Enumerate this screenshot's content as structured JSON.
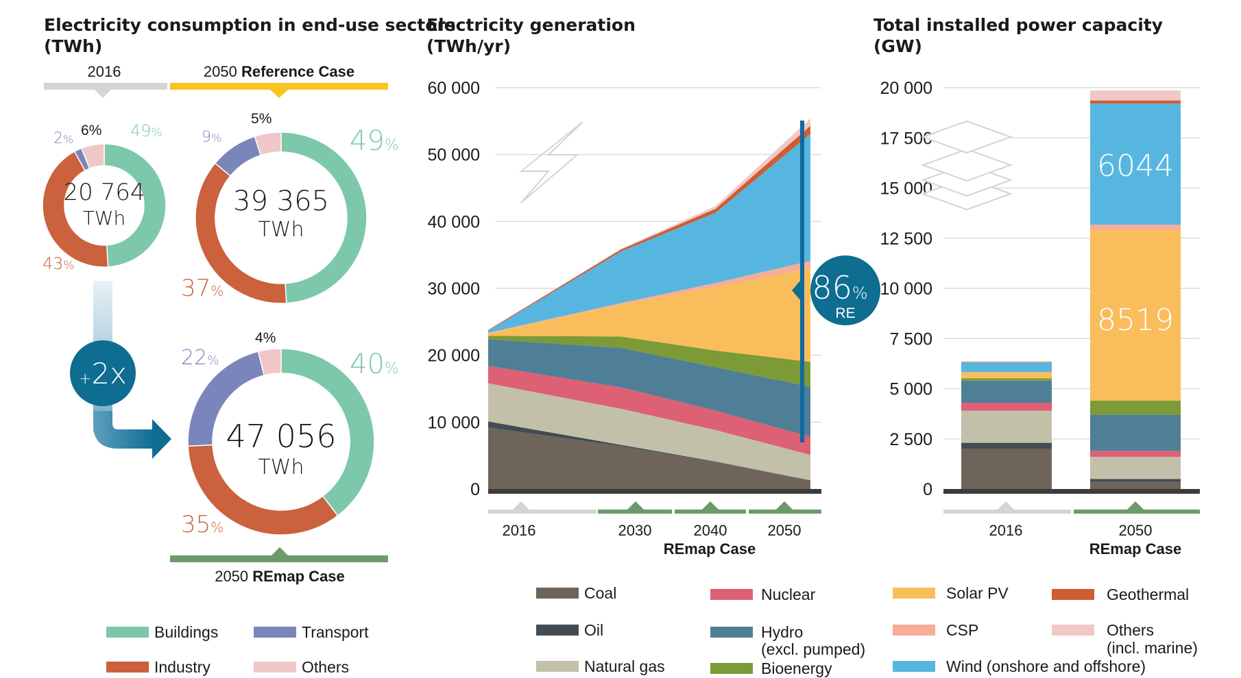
{
  "colors": {
    "buildings": "#7dc8aa",
    "transport": "#7a86bb",
    "industry": "#cb613d",
    "others_cons": "#f0c7c8",
    "coal": "#6e6459",
    "oil": "#434c52",
    "natural_gas": "#c3c0aa",
    "nuclear": "#dd6075",
    "hydro": "#4f7f96",
    "bioenergy": "#7c9a36",
    "solar_pv": "#f9bd5c",
    "csp": "#f6ad97",
    "wind": "#57b6e0",
    "geothermal": "#cf5d32",
    "others_gen": "#f0c8c8",
    "gray_bar": "#d4d4d4",
    "ref_bar": "#fac322",
    "remap_bar": "#6c9a6b",
    "re_circle": "#0e6d91",
    "re_line": "#1069a0"
  },
  "panel1": {
    "title_line1": "Electricity consumption in end-use sectors",
    "title_line2": "(TWh)",
    "header_2016": "2016",
    "header_ref_prefix": "2050 ",
    "header_ref_bold": "Reference Case",
    "footer_prefix": "2050 ",
    "footer_bold": "REmap Case",
    "multiplier": "2x",
    "multiplier_prefix": "+",
    "donuts": [
      {
        "total": "20 764",
        "unit": "TWh",
        "shares": {
          "buildings": 49,
          "industry": 43,
          "transport": 2,
          "others": 6
        },
        "labels": {
          "buildings": "49",
          "industry": "43",
          "transport": "2",
          "others": "6"
        }
      },
      {
        "total": "39 365",
        "unit": "TWh",
        "shares": {
          "buildings": 49,
          "industry": 37,
          "transport": 9,
          "others": 5
        },
        "labels": {
          "buildings": "49",
          "industry": "37",
          "transport": "9",
          "others": "5"
        }
      },
      {
        "total": "47 056",
        "unit": "TWh",
        "shares": {
          "buildings": 40,
          "industry": 35,
          "transport": 22,
          "others": 4
        },
        "labels": {
          "buildings": "40",
          "industry": "35",
          "transport": "22",
          "others": "4"
        }
      }
    ],
    "pct": "%",
    "legend": [
      "Buildings",
      "Transport",
      "Industry",
      "Others"
    ]
  },
  "chart_data": [
    {
      "type": "area",
      "title": "Electricity generation (TWh/yr)",
      "x": [
        2016,
        2030,
        2040,
        2050
      ],
      "xticks": [
        "2016",
        "2030",
        "2040",
        "2050"
      ],
      "xgroup_label": "REmap Case",
      "ylim": [
        0,
        60000
      ],
      "yticks": [
        "0",
        "10 000",
        "20 000",
        "30 000",
        "40 000",
        "50 000",
        "60 000"
      ],
      "re_share_label": "86",
      "re_share_pct": "%",
      "re_share_unit": "RE",
      "series": [
        {
          "name": "Coal",
          "values": [
            9200,
            6400,
            4000,
            1300
          ]
        },
        {
          "name": "Oil",
          "values": [
            900,
            200,
            100,
            0
          ]
        },
        {
          "name": "Natural gas",
          "values": [
            5700,
            5400,
            4700,
            3800
          ]
        },
        {
          "name": "Nuclear",
          "values": [
            2600,
            3200,
            2900,
            2700
          ]
        },
        {
          "name": "Hydro (excl. pumped)",
          "values": [
            4000,
            5900,
            6500,
            7500
          ]
        },
        {
          "name": "Bioenergy",
          "values": [
            500,
            1700,
            2500,
            3700
          ]
        },
        {
          "name": "Solar PV",
          "values": [
            400,
            4800,
            9500,
            14000
          ]
        },
        {
          "name": "CSP",
          "values": [
            50,
            200,
            600,
            1100
          ]
        },
        {
          "name": "Wind (onshore and offshore)",
          "values": [
            300,
            7700,
            10500,
            19000
          ]
        },
        {
          "name": "Geothermal",
          "values": [
            100,
            300,
            600,
            1200
          ]
        },
        {
          "name": "Others (incl. marine)",
          "values": [
            50,
            100,
            400,
            1100
          ]
        }
      ]
    },
    {
      "type": "bar",
      "title": "Total installed power capacity (GW)",
      "categories": [
        "2016",
        "2050"
      ],
      "xgroup_label": "REmap Case",
      "ylim": [
        0,
        20000
      ],
      "yticks": [
        "0",
        "2 500",
        "5 000",
        "7 500",
        "10 000",
        "12 500",
        "15 000",
        "17 500",
        "20 000"
      ],
      "series": [
        {
          "name": "Coal",
          "values": [
            2000,
            350
          ]
        },
        {
          "name": "Oil",
          "values": [
            300,
            150
          ]
        },
        {
          "name": "Natural gas",
          "values": [
            1600,
            1100
          ]
        },
        {
          "name": "Nuclear",
          "values": [
            400,
            300
          ]
        },
        {
          "name": "Hydro (excl. pumped)",
          "values": [
            1100,
            1800
          ]
        },
        {
          "name": "Bioenergy",
          "values": [
            120,
            700
          ]
        },
        {
          "name": "Solar PV",
          "values": [
            300,
            8519
          ]
        },
        {
          "name": "CSP",
          "values": [
            10,
            250
          ]
        },
        {
          "name": "Wind (onshore and offshore)",
          "values": [
            480,
            6044
          ]
        },
        {
          "name": "Geothermal",
          "values": [
            20,
            150
          ]
        },
        {
          "name": "Others (incl. marine)",
          "values": [
            20,
            500
          ]
        }
      ],
      "data_labels": {
        "solar_pv_2050": "8519",
        "wind_2050": "6044"
      }
    }
  ],
  "gen_legend": {
    "col1": [
      "Coal",
      "Oil",
      "Natural gas"
    ],
    "col2": [
      "Nuclear",
      "Hydro",
      "(excl. pumped)",
      "Bioenergy"
    ],
    "col3": [
      "Solar PV",
      "CSP",
      "Wind (onshore and offshore)"
    ],
    "col4": [
      "Geothermal",
      "Others",
      "(incl. marine)"
    ]
  }
}
